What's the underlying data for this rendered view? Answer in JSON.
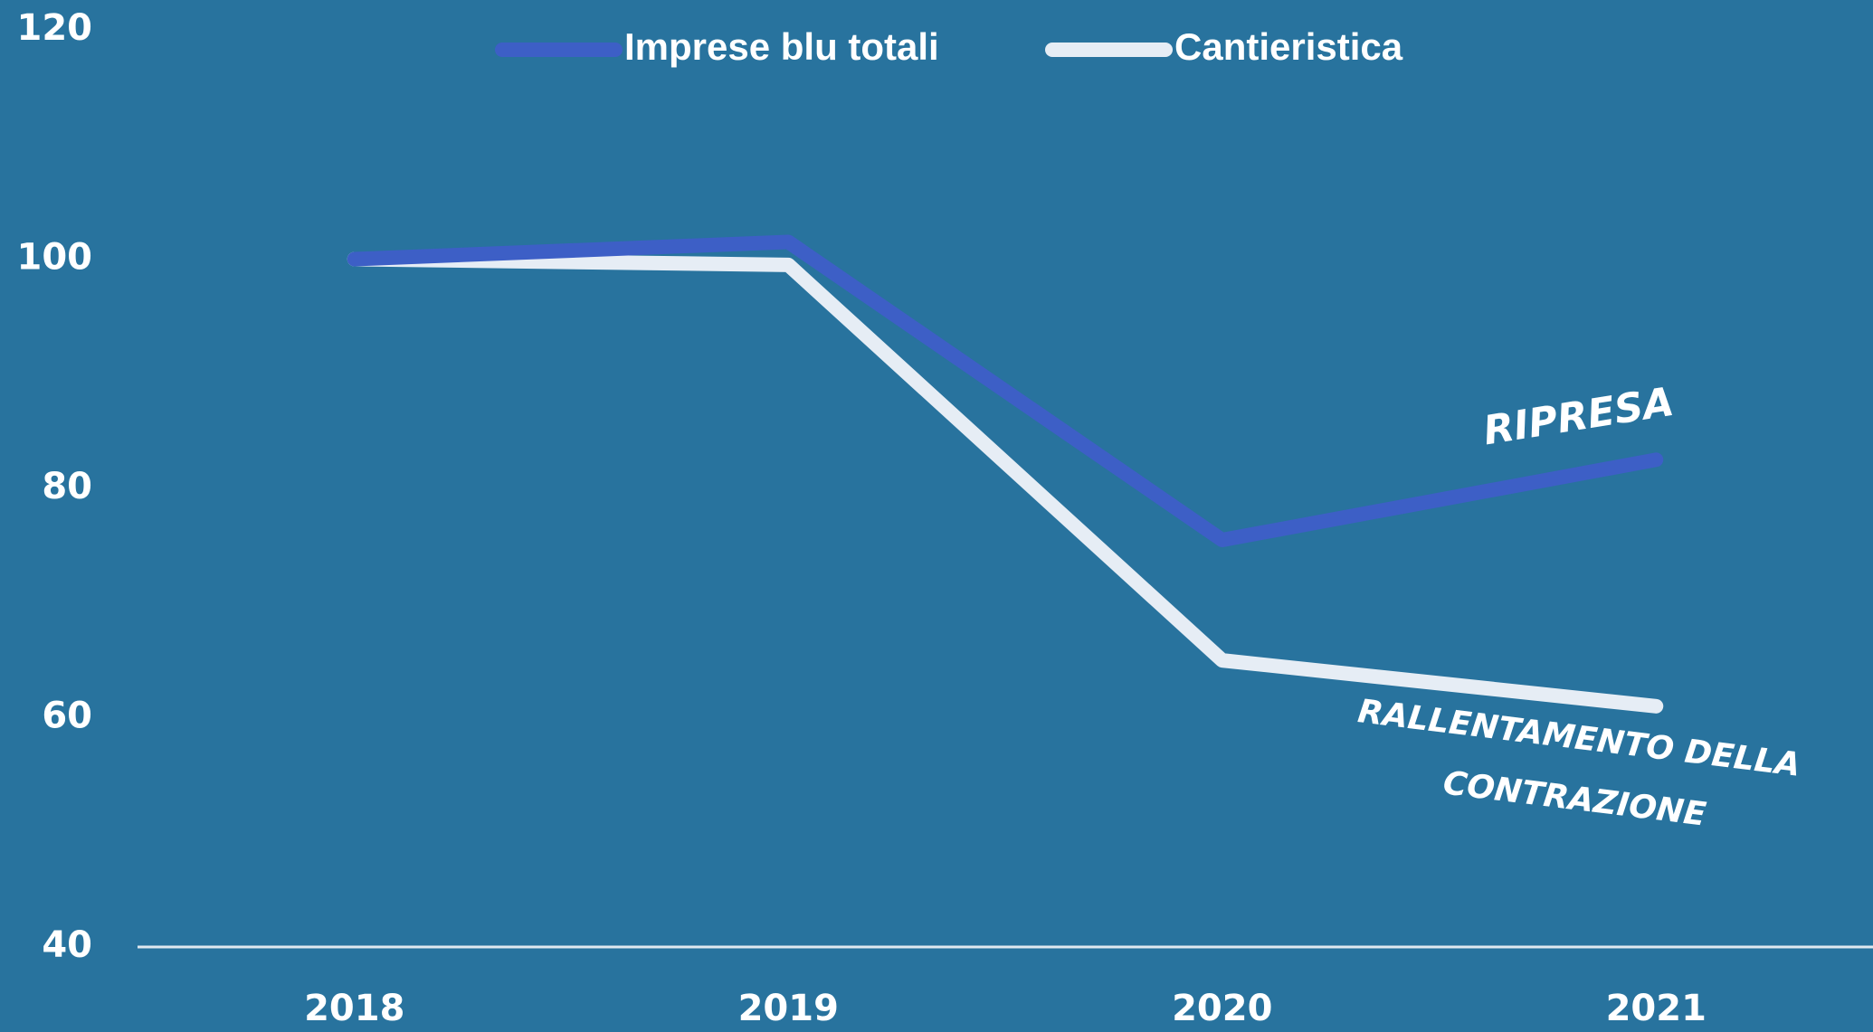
{
  "chart_data": {
    "type": "line",
    "categories": [
      "2018",
      "2019",
      "2020",
      "2021"
    ],
    "series": [
      {
        "name": "Imprese blu totali",
        "color": "#3d5fc6",
        "values": [
          100,
          101.5,
          75.5,
          82.5
        ]
      },
      {
        "name": "Cantieristica",
        "color": "#e6edf5",
        "values": [
          100,
          99.5,
          65,
          61
        ]
      }
    ],
    "ylim": [
      40,
      120
    ],
    "yticks": [
      40,
      60,
      80,
      100,
      120
    ],
    "grid": false,
    "legend": "top",
    "annotations": [
      "RIPRESA",
      "RALLENTAMENTO DELLA",
      "CONTRAZIONE"
    ]
  }
}
